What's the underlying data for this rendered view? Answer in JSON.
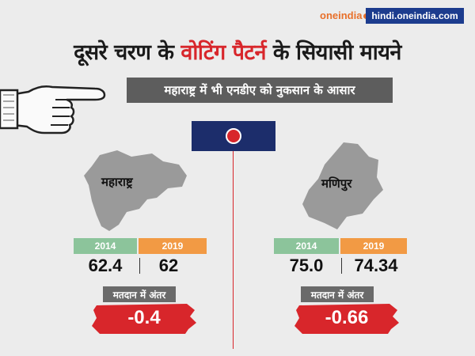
{
  "brand": {
    "logo_text": "oneindia",
    "url": "hindi.oneindia.com"
  },
  "headline": {
    "part1": "दूसरे चरण के ",
    "highlight": "वोटिंग पैटर्न",
    "part2": " के सियासी मायने"
  },
  "subtitle": "महाराष्ट्र में भी एनडीए को नुकसान के आसार",
  "colors": {
    "accent_red": "#d8262b",
    "navy": "#1c2d6b",
    "year_2014": "#8cc49b",
    "year_2019": "#f29a44",
    "map_gray": "#9a9a9a"
  },
  "states": [
    {
      "name": "महाराष्ट्र",
      "year_a": "2014",
      "year_b": "2019",
      "value_a": "62.4",
      "value_b": "62",
      "diff_label": "मतदान में अंतर",
      "diff_value": "-0.4"
    },
    {
      "name": "मणिपुर",
      "year_a": "2014",
      "year_b": "2019",
      "value_a": "75.0",
      "value_b": "74.34",
      "diff_label": "मतदान में अंतर",
      "diff_value": "-0.66"
    }
  ],
  "icons": {
    "pointer": "pointing-hand-icon",
    "toggle": "record-dot-icon",
    "map_left": "maharashtra-map",
    "map_right": "manipur-map"
  }
}
